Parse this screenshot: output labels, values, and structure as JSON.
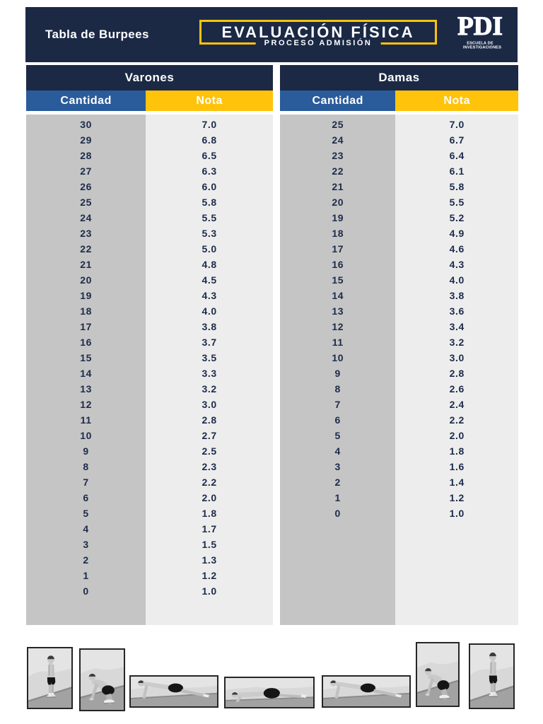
{
  "header": {
    "title": "Tabla de Burpees",
    "banner_title": "EVALUACIÓN FÍSICA",
    "banner_subtitle": "PROCESO ADMISIÓN",
    "logo": {
      "acronym": "PDI",
      "caption_line1": "ESCUELA DE",
      "caption_line2": "INVESTIGACIONES"
    }
  },
  "tables": [
    {
      "title": "Varones",
      "columns": [
        "Cantidad",
        "Nota"
      ],
      "rows": [
        [
          "30",
          "7.0"
        ],
        [
          "29",
          "6.8"
        ],
        [
          "28",
          "6.5"
        ],
        [
          "27",
          "6.3"
        ],
        [
          "26",
          "6.0"
        ],
        [
          "25",
          "5.8"
        ],
        [
          "24",
          "5.5"
        ],
        [
          "23",
          "5.3"
        ],
        [
          "22",
          "5.0"
        ],
        [
          "21",
          "4.8"
        ],
        [
          "20",
          "4.5"
        ],
        [
          "19",
          "4.3"
        ],
        [
          "18",
          "4.0"
        ],
        [
          "17",
          "3.8"
        ],
        [
          "16",
          "3.7"
        ],
        [
          "15",
          "3.5"
        ],
        [
          "14",
          "3.3"
        ],
        [
          "13",
          "3.2"
        ],
        [
          "12",
          "3.0"
        ],
        [
          "11",
          "2.8"
        ],
        [
          "10",
          "2.7"
        ],
        [
          "9",
          "2.5"
        ],
        [
          "8",
          "2.3"
        ],
        [
          "7",
          "2.2"
        ],
        [
          "6",
          "2.0"
        ],
        [
          "5",
          "1.8"
        ],
        [
          "4",
          "1.7"
        ],
        [
          "3",
          "1.5"
        ],
        [
          "2",
          "1.3"
        ],
        [
          "1",
          "1.2"
        ],
        [
          "0",
          "1.0"
        ]
      ]
    },
    {
      "title": "Damas",
      "columns": [
        "Cantidad",
        "Nota"
      ],
      "rows": [
        [
          "25",
          "7.0"
        ],
        [
          "24",
          "6.7"
        ],
        [
          "23",
          "6.4"
        ],
        [
          "22",
          "6.1"
        ],
        [
          "21",
          "5.8"
        ],
        [
          "20",
          "5.5"
        ],
        [
          "19",
          "5.2"
        ],
        [
          "18",
          "4.9"
        ],
        [
          "17",
          "4.6"
        ],
        [
          "16",
          "4.3"
        ],
        [
          "15",
          "4.0"
        ],
        [
          "14",
          "3.8"
        ],
        [
          "13",
          "3.6"
        ],
        [
          "12",
          "3.4"
        ],
        [
          "11",
          "3.2"
        ],
        [
          "10",
          "3.0"
        ],
        [
          "9",
          "2.8"
        ],
        [
          "8",
          "2.6"
        ],
        [
          "7",
          "2.4"
        ],
        [
          "6",
          "2.2"
        ],
        [
          "5",
          "2.0"
        ],
        [
          "4",
          "1.8"
        ],
        [
          "3",
          "1.6"
        ],
        [
          "2",
          "1.4"
        ],
        [
          "1",
          "1.2"
        ],
        [
          "0",
          "1.0"
        ]
      ]
    }
  ],
  "footer": {
    "steps": [
      {
        "pose": "standing"
      },
      {
        "pose": "squat"
      },
      {
        "pose": "plank"
      },
      {
        "pose": "pushup"
      },
      {
        "pose": "plank"
      },
      {
        "pose": "squat"
      },
      {
        "pose": "standing"
      }
    ]
  },
  "colors": {
    "navy": "#1b2945",
    "blue": "#2a5b9b",
    "yellow": "#ffc30b",
    "gray_cantidad": "#c5c5c5",
    "gray_nota": "#ededed",
    "ink": "#1c2b4a",
    "photo_border": "#262626"
  }
}
